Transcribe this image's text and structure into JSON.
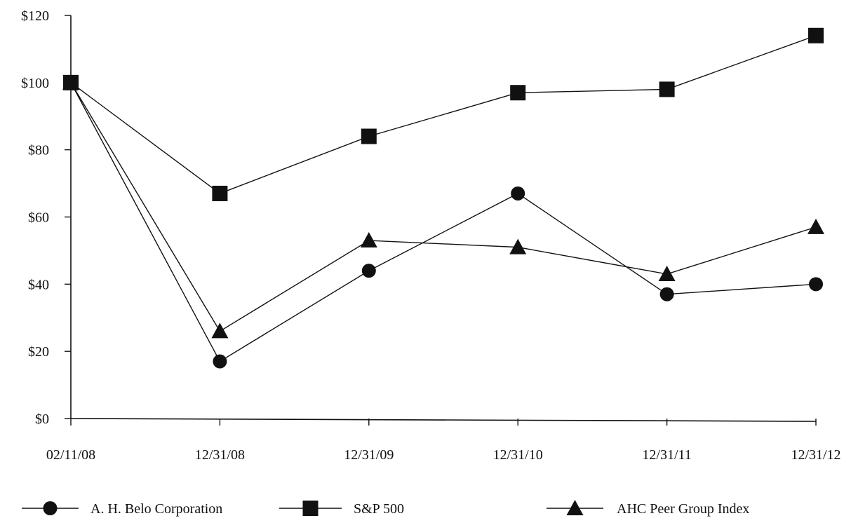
{
  "chart_data": {
    "type": "line",
    "categories": [
      "02/11/08",
      "12/31/08",
      "12/31/09",
      "12/31/10",
      "12/31/11",
      "12/31/12"
    ],
    "ylim": [
      0,
      120
    ],
    "yticks": [
      0,
      20,
      40,
      60,
      80,
      100,
      120
    ],
    "ytick_labels": [
      "$0",
      "$20",
      "$40",
      "$60",
      "$80",
      "$100",
      "$120"
    ],
    "grid": false,
    "legend_position": "bottom",
    "series": [
      {
        "name": "A. H. Belo Corporation",
        "marker": "circle",
        "values": [
          100,
          17,
          44,
          67,
          37,
          40
        ]
      },
      {
        "name": "S&P 500",
        "marker": "square",
        "values": [
          100,
          67,
          84,
          97,
          98,
          114
        ]
      },
      {
        "name": "AHC Peer Group Index",
        "marker": "triangle",
        "values": [
          100,
          26,
          53,
          51,
          43,
          57
        ]
      }
    ],
    "colors": {
      "line": "#111111",
      "marker": "#111111",
      "axis": "#111111"
    }
  }
}
